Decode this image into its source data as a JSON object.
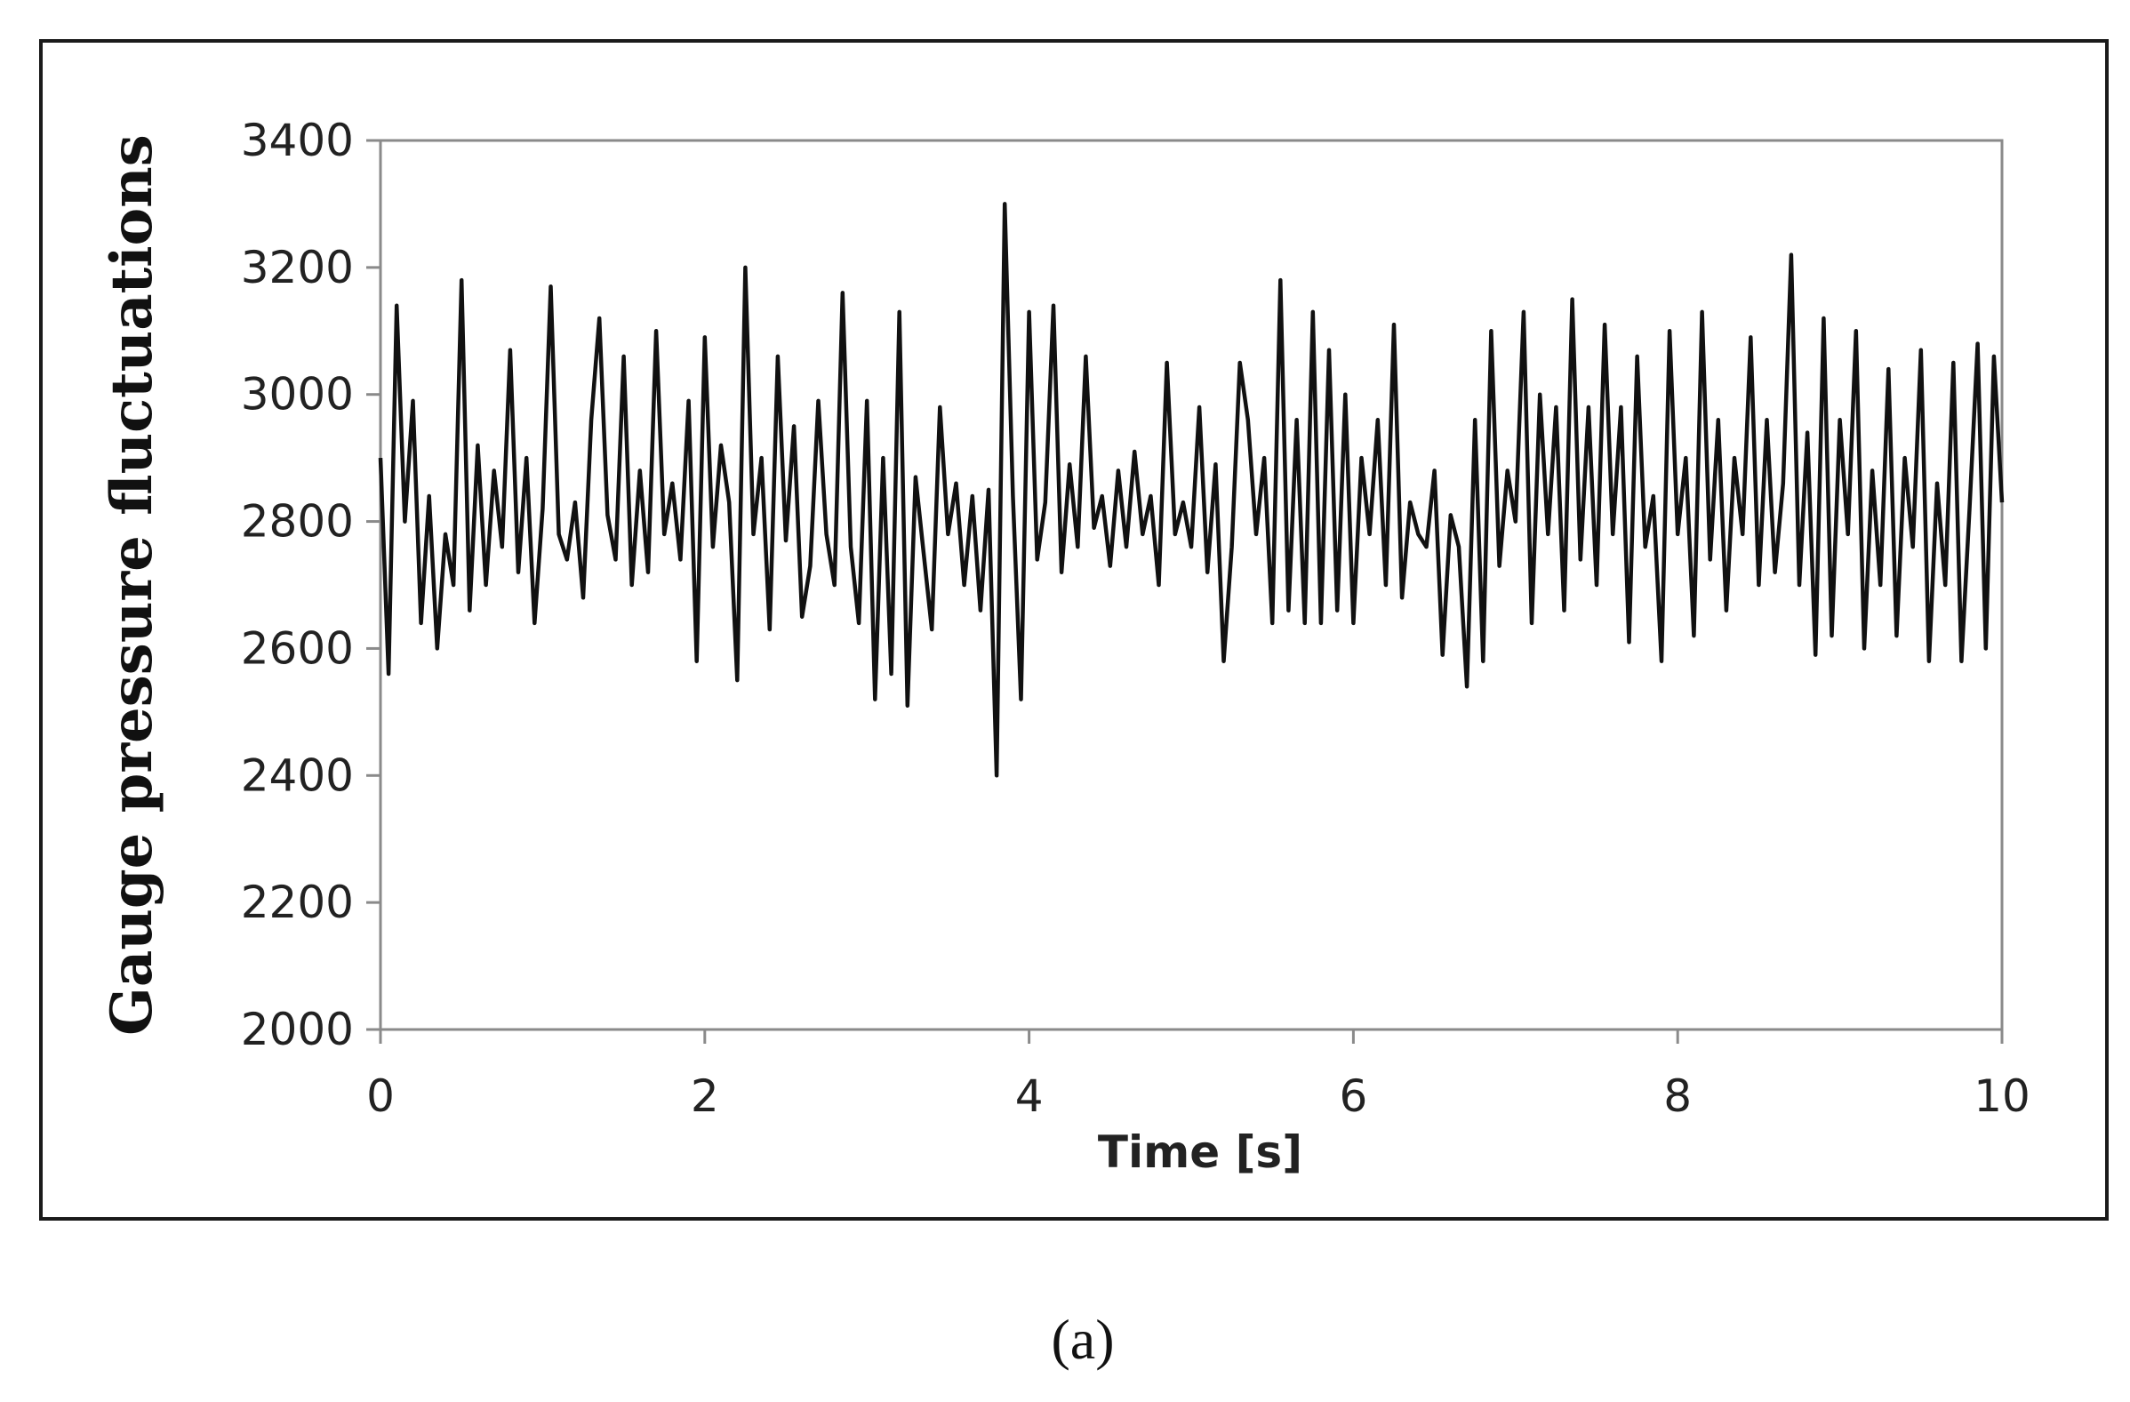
{
  "figure": {
    "caption": "(a)"
  },
  "chart_data": {
    "type": "line",
    "title": "",
    "xlabel": "Time [s]",
    "ylabel": "Gauge pressure fluctuations",
    "xlim": [
      0,
      10
    ],
    "ylim": [
      2000,
      3400
    ],
    "xticks": [
      0,
      2,
      4,
      6,
      8,
      10
    ],
    "yticks": [
      2000,
      2200,
      2400,
      2600,
      2800,
      3000,
      3200,
      3400
    ],
    "grid": false,
    "legend": "none",
    "line_color": "#111111",
    "series": [
      {
        "x": [
          0,
          0.05,
          0.1,
          0.15,
          0.2,
          0.25,
          0.3,
          0.35,
          0.4,
          0.45,
          0.5,
          0.55,
          0.6,
          0.65,
          0.7,
          0.75,
          0.8,
          0.85,
          0.9,
          0.95,
          1.0,
          1.05,
          1.1,
          1.15,
          1.2,
          1.25,
          1.3,
          1.35,
          1.4,
          1.45,
          1.5,
          1.55,
          1.6,
          1.65,
          1.7,
          1.75,
          1.8,
          1.85,
          1.9,
          1.95,
          2.0,
          2.05,
          2.1,
          2.15,
          2.2,
          2.25,
          2.3,
          2.35,
          2.4,
          2.45,
          2.5,
          2.55,
          2.6,
          2.65,
          2.7,
          2.75,
          2.8,
          2.85,
          2.9,
          2.95,
          3.0,
          3.05,
          3.1,
          3.15,
          3.2,
          3.25,
          3.3,
          3.35,
          3.4,
          3.45,
          3.5,
          3.55,
          3.6,
          3.65,
          3.7,
          3.75,
          3.8,
          3.85,
          3.9,
          3.95,
          4.0,
          4.05,
          4.1,
          4.15,
          4.2,
          4.25,
          4.3,
          4.35,
          4.4,
          4.45,
          4.5,
          4.55,
          4.6,
          4.65,
          4.7,
          4.75,
          4.8,
          4.85,
          4.9,
          4.95,
          5.0,
          5.05,
          5.1,
          5.15,
          5.2,
          5.25,
          5.3,
          5.35,
          5.4,
          5.45,
          5.5,
          5.55,
          5.6,
          5.65,
          5.7,
          5.75,
          5.8,
          5.85,
          5.9,
          5.95,
          6.0,
          6.05,
          6.1,
          6.15,
          6.2,
          6.25,
          6.3,
          6.35,
          6.4,
          6.45,
          6.5,
          6.55,
          6.6,
          6.65,
          6.7,
          6.75,
          6.8,
          6.85,
          6.9,
          6.95,
          7.0,
          7.05,
          7.1,
          7.15,
          7.2,
          7.25,
          7.3,
          7.35,
          7.4,
          7.45,
          7.5,
          7.55,
          7.6,
          7.65,
          7.7,
          7.75,
          7.8,
          7.85,
          7.9,
          7.95,
          8.0,
          8.05,
          8.1,
          8.15,
          8.2,
          8.25,
          8.3,
          8.35,
          8.4,
          8.45,
          8.5,
          8.55,
          8.6,
          8.65,
          8.7,
          8.75,
          8.8,
          8.85,
          8.9,
          8.95,
          9.0,
          9.05,
          9.1,
          9.15,
          9.2,
          9.25,
          9.3,
          9.35,
          9.4,
          9.45,
          9.5,
          9.55,
          9.6,
          9.65,
          9.7,
          9.75,
          9.8,
          9.85,
          9.9,
          9.95,
          10.0
        ],
        "y": [
          2900,
          2560,
          3140,
          2800,
          2990,
          2640,
          2840,
          2600,
          2780,
          2700,
          3180,
          2660,
          2920,
          2700,
          2880,
          2760,
          3070,
          2720,
          2900,
          2640,
          2820,
          3170,
          2780,
          2740,
          2830,
          2680,
          2960,
          3120,
          2810,
          2740,
          3060,
          2700,
          2880,
          2720,
          3100,
          2780,
          2860,
          2740,
          2990,
          2580,
          3090,
          2760,
          2920,
          2830,
          2550,
          3200,
          2780,
          2900,
          2630,
          3060,
          2770,
          2950,
          2650,
          2730,
          2990,
          2780,
          2700,
          3160,
          2760,
          2640,
          2990,
          2520,
          2900,
          2560,
          3130,
          2510,
          2870,
          2750,
          2630,
          2980,
          2780,
          2860,
          2700,
          2840,
          2660,
          2850,
          2400,
          3300,
          2840,
          2520,
          3130,
          2740,
          2830,
          3140,
          2720,
          2890,
          2760,
          3060,
          2790,
          2840,
          2730,
          2880,
          2760,
          2910,
          2780,
          2840,
          2700,
          3050,
          2780,
          2830,
          2760,
          2980,
          2720,
          2890,
          2580,
          2760,
          3050,
          2960,
          2780,
          2900,
          2640,
          3180,
          2660,
          2960,
          2640,
          3130,
          2640,
          3070,
          2660,
          3000,
          2640,
          2900,
          2780,
          2960,
          2700,
          3110,
          2680,
          2830,
          2780,
          2760,
          2880,
          2590,
          2810,
          2760,
          2540,
          2960,
          2580,
          3100,
          2730,
          2880,
          2800,
          3130,
          2640,
          3000,
          2780,
          2980,
          2660,
          3150,
          2740,
          2980,
          2700,
          3110,
          2780,
          2980,
          2610,
          3060,
          2760,
          2840,
          2580,
          3100,
          2780,
          2900,
          2620,
          3130,
          2740,
          2960,
          2660,
          2900,
          2780,
          3090,
          2700,
          2960,
          2720,
          2860,
          3220,
          2700,
          2940,
          2590,
          3120,
          2620,
          2960,
          2780,
          3100,
          2600,
          2880,
          2700,
          3040,
          2620,
          2900,
          2760,
          3070,
          2580,
          2860,
          2700,
          3050,
          2580,
          2820,
          3080,
          2600,
          3060,
          2830
        ]
      }
    ]
  }
}
